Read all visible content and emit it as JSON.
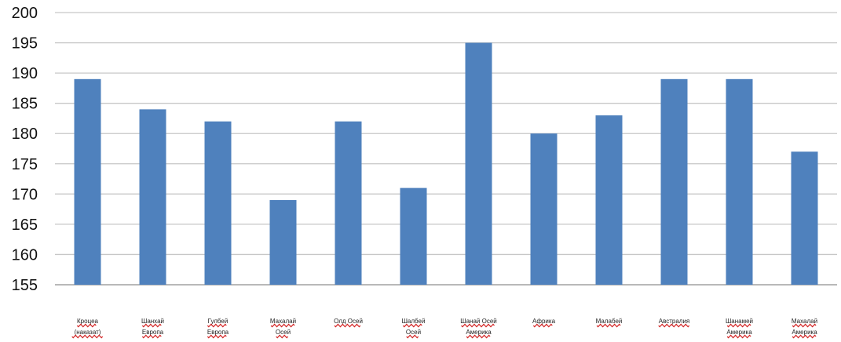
{
  "chart_data": {
    "type": "bar",
    "title": "",
    "xlabel": "",
    "ylabel": "",
    "ylim": [
      155,
      200
    ],
    "yticks": [
      155,
      160,
      165,
      170,
      175,
      180,
      185,
      190,
      195,
      200
    ],
    "grid": true,
    "legend": "none",
    "bar_color": "#4f81bd",
    "categories": [
      [
        "Кроцеа",
        "(наказат)"
      ],
      [
        "Шанхай",
        "Европа"
      ],
      [
        "Гулбей",
        "Европа"
      ],
      [
        "Махалай",
        "Осей"
      ],
      [
        "Олд Осей"
      ],
      [
        "Шалбей",
        "Осей"
      ],
      [
        "Шанай Осей",
        "Америка"
      ],
      [
        "Африка"
      ],
      [
        "Малабей"
      ],
      [
        "Австралия"
      ],
      [
        "Шанамей",
        "Америка"
      ],
      [
        "Махалай",
        "Америка"
      ]
    ],
    "values": [
      189,
      184,
      182,
      169,
      182,
      171,
      195,
      180,
      183,
      189,
      189,
      177
    ]
  }
}
